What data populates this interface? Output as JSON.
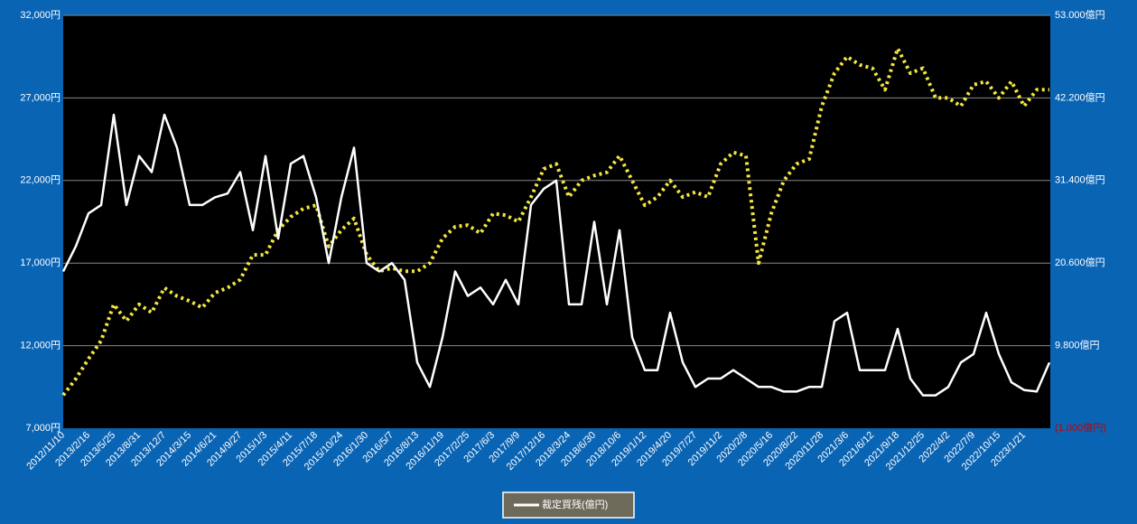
{
  "chart_data": {
    "type": "line",
    "categories": [
      "2012/11/10",
      null,
      "2013/2/16",
      null,
      "2013/5/25",
      null,
      "2013/8/31",
      null,
      "2013/12/7",
      null,
      "2014/3/15",
      null,
      "2014/6/21",
      null,
      "2014/9/27",
      null,
      "2015/1/3",
      null,
      "2015/4/11",
      null,
      "2015/7/18",
      null,
      "2015/10/24",
      null,
      "2016/1/30",
      null,
      "2016/5/7",
      null,
      "2016/8/13",
      null,
      "2016/11/19",
      null,
      "2017/2/25",
      null,
      "2017/6/3",
      null,
      "2017/9/9",
      null,
      "2017/12/16",
      null,
      "2018/3/24",
      null,
      "2018/6/30",
      null,
      "2018/10/6",
      null,
      "2019/1/12",
      null,
      "2019/4/20",
      null,
      "2019/7/27",
      null,
      "2019/11/2",
      null,
      "2020/2/8",
      null,
      "2020/5/16",
      null,
      "2020/8/22",
      null,
      "2020/11/28",
      null,
      "2021/3/6",
      null,
      "2021/6/12",
      null,
      "2021/9/18",
      null,
      "2021/12/25",
      null,
      "2022/4/2",
      null,
      "2022/7/9",
      null,
      "2022/10/15",
      null,
      "2023/1/21",
      null,
      null
    ],
    "series": [
      {
        "color": "#f2e640",
        "style": "dotted",
        "values": [
          9000,
          10000,
          11200,
          12300,
          14500,
          13500,
          14500,
          14000,
          15500,
          15000,
          14700,
          14300,
          15200,
          15500,
          16000,
          17500,
          17500,
          19000,
          19800,
          20300,
          20500,
          18000,
          19000,
          19700,
          17500,
          16500,
          16700,
          16500,
          16500,
          17000,
          18500,
          19200,
          19300,
          18800,
          20000,
          19900,
          19500,
          21000,
          22700,
          23000,
          21000,
          22000,
          22300,
          22500,
          23500,
          22000,
          20500,
          21000,
          22000,
          21000,
          21300,
          21000,
          23000,
          23700,
          23500,
          17000,
          20000,
          22000,
          23000,
          23300,
          26500,
          28500,
          29500,
          29000,
          28800,
          27500,
          30000,
          28500,
          28800,
          27000,
          27000,
          26500,
          27800,
          28000,
          27000,
          28000,
          26500,
          27500,
          27500
        ]
      },
      {
        "name": "裁定買残(億円)",
        "color": "#ffffff",
        "axis": "y2",
        "values": [
          19500,
          22800,
          27100,
          28200,
          40000,
          28200,
          34600,
          32500,
          40000,
          35700,
          28200,
          28200,
          29200,
          29700,
          32500,
          24900,
          34600,
          23800,
          33600,
          34600,
          29200,
          20600,
          29200,
          35700,
          20600,
          19500,
          20600,
          18400,
          7600,
          4400,
          10900,
          19500,
          16300,
          17400,
          15200,
          18400,
          15200,
          28200,
          30300,
          31400,
          15200,
          15200,
          26000,
          15200,
          24900,
          10900,
          6600,
          6600,
          14100,
          7600,
          4400,
          5500,
          5500,
          6600,
          5500,
          4400,
          4400,
          3800,
          3800,
          4400,
          4400,
          13000,
          14100,
          6600,
          6600,
          6600,
          12000,
          5500,
          3300,
          3300,
          4400,
          7600,
          8700,
          14100,
          8700,
          5000,
          4000,
          3800,
          7600
        ]
      }
    ],
    "ylim": [
      7000,
      32000
    ],
    "yticks": [
      {
        "value": 7000,
        "label": "7,000円"
      },
      {
        "value": 12000,
        "label": "12,000円"
      },
      {
        "value": 17000,
        "label": "17,000円"
      },
      {
        "value": 22000,
        "label": "22,000円"
      },
      {
        "value": 27000,
        "label": "27,000円"
      },
      {
        "value": 32000,
        "label": "32,000円"
      }
    ],
    "y2lim": [
      -1000,
      53000
    ],
    "y2ticks": [
      {
        "value": -1000,
        "label": "(1.000億円)",
        "color": "#c00000"
      },
      {
        "value": 9800,
        "label": "9.800億円"
      },
      {
        "value": 20600,
        "label": "20.600億円"
      },
      {
        "value": 31400,
        "label": "31.400億円"
      },
      {
        "value": 42200,
        "label": "42.200億円"
      },
      {
        "value": 53000,
        "label": "53.000億円"
      }
    ],
    "grid": true,
    "legend": "bottom"
  }
}
